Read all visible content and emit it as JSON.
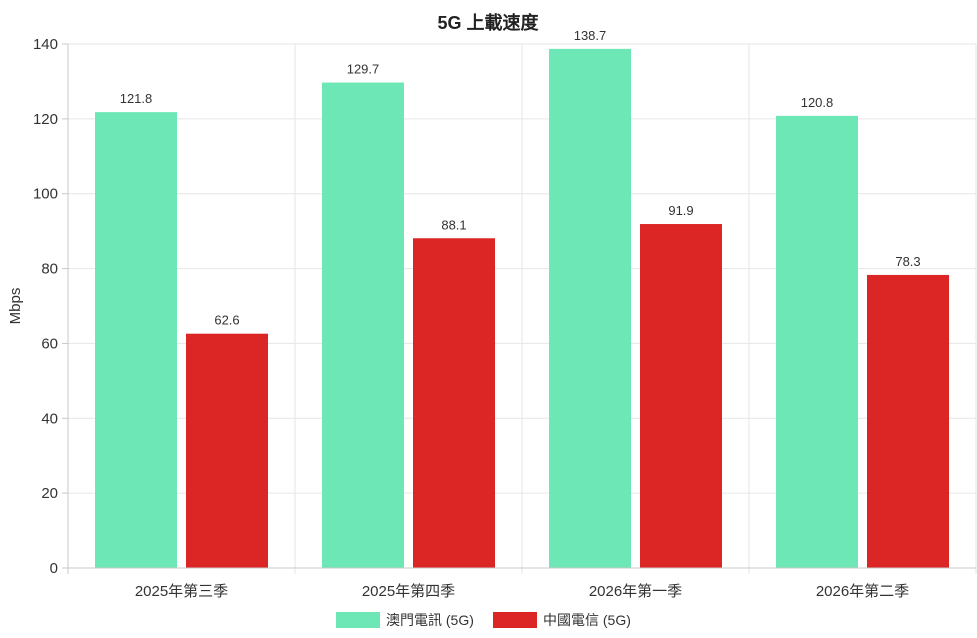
{
  "chart_data": {
    "type": "bar",
    "title": "5G 上載速度",
    "xlabel": "",
    "ylabel": "Mbps",
    "ylim": [
      0,
      140
    ],
    "yticks": [
      0,
      20,
      40,
      60,
      80,
      100,
      120,
      140
    ],
    "categories": [
      "2025年第三季",
      "2025年第四季",
      "2026年第一季",
      "2026年第二季"
    ],
    "series": [
      {
        "name": "澳門電訊 (5G)",
        "color": "#6EE7B7",
        "values": [
          121.8,
          129.7,
          138.7,
          120.8
        ]
      },
      {
        "name": "中國電信 (5G)",
        "color": "#DC2626",
        "values": [
          62.6,
          88.1,
          91.9,
          78.3
        ]
      }
    ],
    "grid": true,
    "legend_position": "bottom"
  }
}
